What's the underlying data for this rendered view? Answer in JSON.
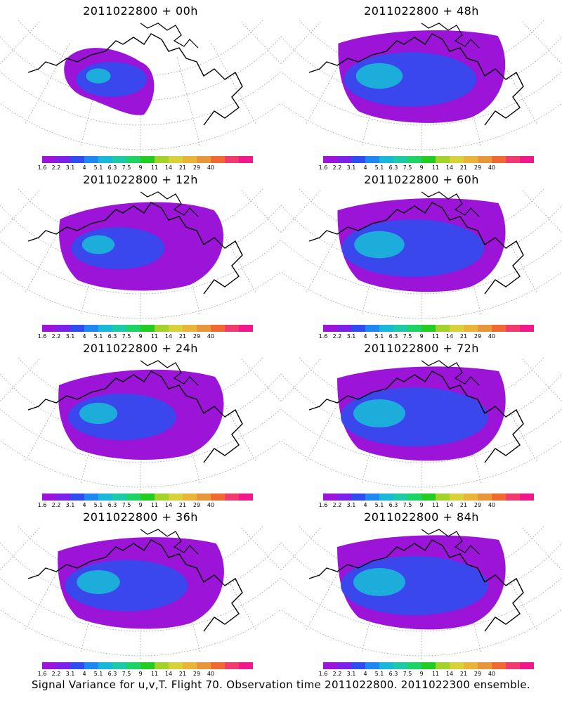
{
  "panels": [
    {
      "title": "2011022800  +  00h",
      "spread": 0.22
    },
    {
      "title": "2011022800  +  48h",
      "spread": 0.85
    },
    {
      "title": "2011022800  +  12h",
      "spread": 0.45
    },
    {
      "title": "2011022800  +  60h",
      "spread": 0.95
    },
    {
      "title": "2011022800  +  24h",
      "spread": 0.6
    },
    {
      "title": "2011022800  +  72h",
      "spread": 1.0
    },
    {
      "title": "2011022800  +  36h",
      "spread": 0.75
    },
    {
      "title": "2011022800  +  84h",
      "spread": 1.0
    }
  ],
  "colorbar": {
    "colors": [
      "#9b14d8",
      "#7a22e8",
      "#2f4cf0",
      "#1e88f0",
      "#19b8d8",
      "#1cc9a8",
      "#1ed264",
      "#22cc22",
      "#a4d22a",
      "#d8d23a",
      "#e8b43a",
      "#e8963a",
      "#ee6a30",
      "#f03c6c",
      "#ee1a8a"
    ],
    "labels": [
      "1.6",
      "2.2",
      "3.1",
      "4",
      "5.1",
      "6.3",
      "7.5",
      "9",
      "11",
      "14",
      "21",
      "29",
      "40"
    ]
  },
  "footer": "Signal Variance for u,v,T. Flight 70. Observation time 2011022800. 2011022300 ensemble."
}
